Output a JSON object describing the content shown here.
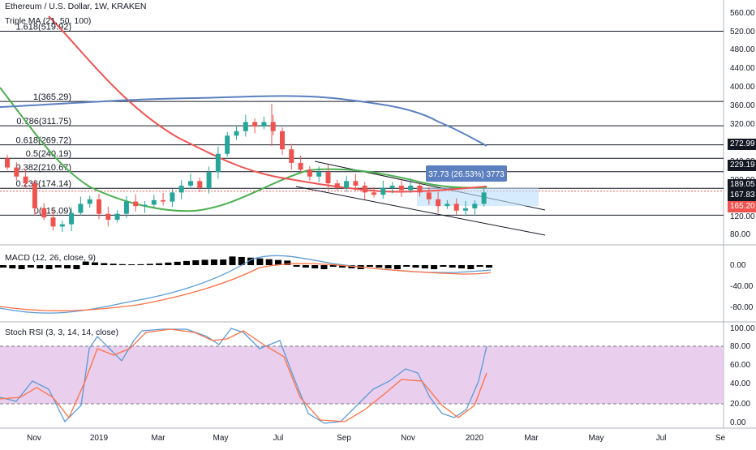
{
  "title": "Ethereum / U.S. Dollar, 1W, KRAKEN",
  "triple_ma_legend": "Triple MA (21, 50, 100)",
  "macd_legend": "MACD (12, 26, close, 9)",
  "stoch_legend": "Stoch RSI (3, 3, 14, 14, close)",
  "measure_label": "37.73 (26.53%) 3773",
  "price_axis": [
    "560.00",
    "520.00",
    "480.00",
    "440.00",
    "400.00",
    "360.00",
    "320.00",
    "240.00",
    "200.00",
    "120.00",
    "80.00"
  ],
  "macd_axis": [
    "0.00",
    "-40.00",
    "-80.00"
  ],
  "stoch_axis": [
    "100.00",
    "80.00",
    "60.00",
    "40.00",
    "20.00",
    "0.00"
  ],
  "time_axis": [
    "Nov",
    "2019",
    "Mar",
    "May",
    "Jul",
    "Sep",
    "Nov",
    "2020",
    "Mar",
    "May",
    "Jul",
    "Se"
  ],
  "price_tags": [
    {
      "text": "272.99",
      "color": "#131722"
    },
    {
      "text": "229.19",
      "color": "#131722"
    },
    {
      "text": "189.05",
      "color": "#131722"
    },
    {
      "text": "167.83",
      "color": "#131722"
    },
    {
      "text": "165.20",
      "color": "#ef5350"
    }
  ],
  "fib_levels": [
    {
      "label": "1.618(519.92)",
      "price": 519.92
    },
    {
      "label": "1(365.29)",
      "price": 365.29
    },
    {
      "label": "0.786(311.75)",
      "price": 311.75
    },
    {
      "label": "0.618(269.72)",
      "price": 269.72
    },
    {
      "label": "0.5(240.19)",
      "price": 240.19
    },
    {
      "label": "0.382(210.67)",
      "price": 210.67
    },
    {
      "label": "0.236(174.14)",
      "price": 174.14
    },
    {
      "label": "0(115.09)",
      "price": 115.09
    }
  ],
  "colors": {
    "up": "#26a69a",
    "down": "#ef5350",
    "ma_fast": "#4caf50",
    "ma_mid": "#ef5350",
    "ma_slow": "#5b7fbf",
    "stoch_k": "#5b9bd5",
    "stoch_d": "#ff7043",
    "band": "#e1bee7"
  },
  "chart_data": {
    "type": "candlestick",
    "symbol": "ETHUSD",
    "interval": "1W",
    "ylim": [
      60,
      580
    ],
    "weekly_close_approx": [
      220,
      200,
      185,
      130,
      110,
      90,
      95,
      120,
      140,
      150,
      118,
      105,
      118,
      145,
      135,
      138,
      148,
      145,
      165,
      180,
      190,
      175,
      210,
      250,
      290,
      300,
      320,
      310,
      320,
      300,
      260,
      230,
      215,
      200,
      210,
      185,
      175,
      190,
      180,
      165,
      160,
      175,
      180,
      170,
      180,
      165,
      150,
      135,
      140,
      125,
      130,
      140,
      165
    ],
    "macd_ylim": [
      -100,
      10
    ],
    "stoch_ylim": [
      0,
      100
    ],
    "stoch_levels": [
      80,
      20
    ]
  }
}
